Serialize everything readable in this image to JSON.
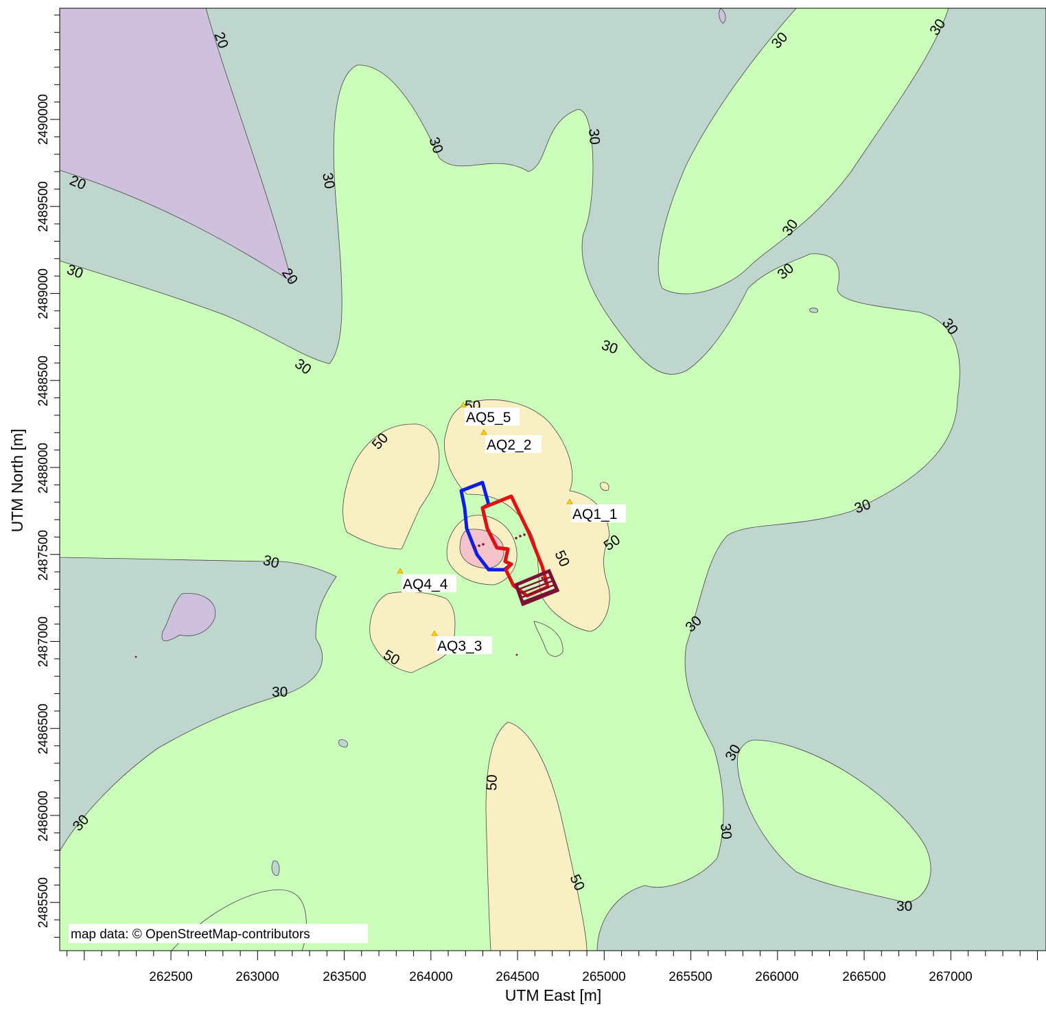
{
  "map": {
    "x_axis_title": "UTM East [m]",
    "y_axis_title": "UTM North [m]",
    "attribution": "map data: © OpenStreetMap-contributors",
    "x_ticks": [
      "262500",
      "263000",
      "263500",
      "264000",
      "264500",
      "265000",
      "265500",
      "266000",
      "266500",
      "267000"
    ],
    "y_ticks": [
      "2490000",
      "2489500",
      "2489000",
      "2488500",
      "2488000",
      "2487500",
      "2487000",
      "2486500",
      "2486000",
      "2485500"
    ],
    "contour_labels": [
      "20",
      "20",
      "20",
      "30",
      "30",
      "30",
      "30",
      "30",
      "30",
      "30",
      "30",
      "30",
      "30",
      "30",
      "30",
      "30",
      "30",
      "30",
      "30",
      "30",
      "30",
      "30",
      "50",
      "50",
      "50",
      "50",
      "50",
      "50",
      "50"
    ],
    "receptors": [
      {
        "label": "AQ5_5"
      },
      {
        "label": "AQ2_2"
      },
      {
        "label": "AQ1_1"
      },
      {
        "label": "AQ4_4"
      },
      {
        "label": "AQ3_3"
      }
    ],
    "colors": {
      "below_20": "#cfc0dd",
      "from_20_to_30": "#bfd6cf",
      "from_30_to_50": "#ccfebb",
      "from_50": "#f8efc2",
      "highest": "#f5c4cb",
      "site_boundary_blue": "#0a1ee6",
      "site_boundary_red": "#e31010",
      "source_area": "#7a1236",
      "receptor_marker": "#ffd700"
    }
  }
}
